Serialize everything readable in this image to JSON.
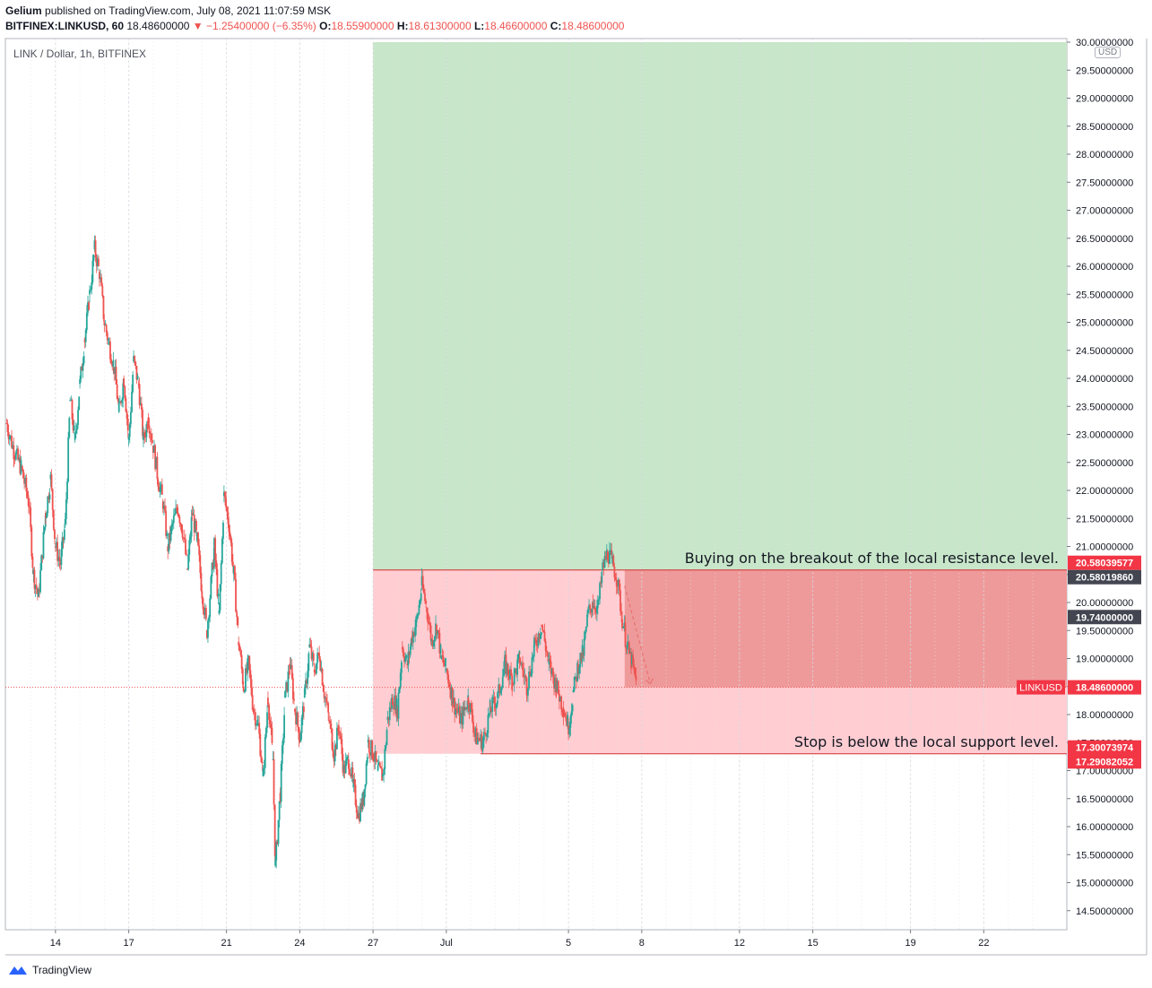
{
  "header": {
    "publisher": "Gelium",
    "published_text": "published on TradingView.com, July 08, 2021 11:07:59 MSK",
    "symbol_line": "BITFINEX:LINKUSD, 60",
    "last": "18.48600000",
    "change": "▼ −1.25400000 (−6.35%)",
    "o_label": "O:",
    "o": "18.55900000",
    "h_label": "H:",
    "h": "18.61300000",
    "l_label": "L:",
    "l": "18.46600000",
    "c_label": "C:",
    "c": "18.48600000"
  },
  "footer": {
    "brand": "TradingView"
  },
  "colors": {
    "up": "#26a69a",
    "down": "#ef5350",
    "profit_zone": "#c8e6c9",
    "loss_zone": "#ffcdd2",
    "loss_zone_dark": "#ef9a9a"
  },
  "chart_data": {
    "type": "candlestick",
    "title": "LINK / Dollar, 1h, BITFINEX",
    "currency": "USD",
    "ylim": [
      14.0,
      30.0
    ],
    "y_ticks": [
      "14.50000000",
      "15.00000000",
      "15.50000000",
      "16.00000000",
      "16.50000000",
      "17.00000000",
      "17.50000000",
      "18.00000000",
      "18.50000000",
      "19.00000000",
      "19.50000000",
      "20.00000000",
      "20.50000000",
      "21.00000000",
      "21.50000000",
      "22.00000000",
      "22.50000000",
      "23.00000000",
      "23.50000000",
      "24.00000000",
      "24.50000000",
      "25.00000000",
      "25.50000000",
      "26.00000000",
      "26.50000000",
      "27.00000000",
      "27.50000000",
      "28.00000000",
      "28.50000000",
      "29.00000000",
      "29.50000000",
      "30.00000000"
    ],
    "x_ticks": [
      {
        "label": "14",
        "day": 14
      },
      {
        "label": "17",
        "day": 17
      },
      {
        "label": "21",
        "day": 21
      },
      {
        "label": "24",
        "day": 24
      },
      {
        "label": "27",
        "day": 27
      },
      {
        "label": "Jul",
        "day": 30
      },
      {
        "label": "5",
        "day": 35
      },
      {
        "label": "8",
        "day": 38
      },
      {
        "label": "12",
        "day": 42
      },
      {
        "label": "15",
        "day": 45
      },
      {
        "label": "19",
        "day": 49
      },
      {
        "label": "22",
        "day": 52
      }
    ],
    "x_range_days": [
      11.95,
      55.4
    ],
    "price_path": [
      [
        12.0,
        23.2
      ],
      [
        12.3,
        22.7
      ],
      [
        12.6,
        22.4
      ],
      [
        12.9,
        21.8
      ],
      [
        13.1,
        20.5
      ],
      [
        13.3,
        20.1
      ],
      [
        13.6,
        21.6
      ],
      [
        13.8,
        22.2
      ],
      [
        14.0,
        21.0
      ],
      [
        14.2,
        20.7
      ],
      [
        14.4,
        21.4
      ],
      [
        14.6,
        23.6
      ],
      [
        14.8,
        22.9
      ],
      [
        15.0,
        23.9
      ],
      [
        15.2,
        24.7
      ],
      [
        15.4,
        25.5
      ],
      [
        15.6,
        26.3
      ],
      [
        15.8,
        25.9
      ],
      [
        16.0,
        25.0
      ],
      [
        16.2,
        24.6
      ],
      [
        16.4,
        24.2
      ],
      [
        16.6,
        23.4
      ],
      [
        16.8,
        24.0
      ],
      [
        17.0,
        22.9
      ],
      [
        17.2,
        24.3
      ],
      [
        17.4,
        23.9
      ],
      [
        17.6,
        22.9
      ],
      [
        17.8,
        23.3
      ],
      [
        18.0,
        22.8
      ],
      [
        18.2,
        22.2
      ],
      [
        18.4,
        21.8
      ],
      [
        18.6,
        21.0
      ],
      [
        18.8,
        21.4
      ],
      [
        19.0,
        21.7
      ],
      [
        19.2,
        21.3
      ],
      [
        19.4,
        20.6
      ],
      [
        19.6,
        21.6
      ],
      [
        19.8,
        21.1
      ],
      [
        20.0,
        20.2
      ],
      [
        20.2,
        19.5
      ],
      [
        20.5,
        21.0
      ],
      [
        20.7,
        19.8
      ],
      [
        20.9,
        21.9
      ],
      [
        21.1,
        21.4
      ],
      [
        21.3,
        20.5
      ],
      [
        21.5,
        19.3
      ],
      [
        21.7,
        18.5
      ],
      [
        21.9,
        18.9
      ],
      [
        22.1,
        18.1
      ],
      [
        22.3,
        17.8
      ],
      [
        22.5,
        16.9
      ],
      [
        22.7,
        18.3
      ],
      [
        22.9,
        17.2
      ],
      [
        23.0,
        15.3
      ],
      [
        23.2,
        16.6
      ],
      [
        23.4,
        18.3
      ],
      [
        23.6,
        18.9
      ],
      [
        23.8,
        18.1
      ],
      [
        24.0,
        17.6
      ],
      [
        24.2,
        18.3
      ],
      [
        24.4,
        19.2
      ],
      [
        24.6,
        18.8
      ],
      [
        24.8,
        19.1
      ],
      [
        25.0,
        18.4
      ],
      [
        25.2,
        17.9
      ],
      [
        25.4,
        17.3
      ],
      [
        25.6,
        17.8
      ],
      [
        25.8,
        17.0
      ],
      [
        26.0,
        17.2
      ],
      [
        26.2,
        16.7
      ],
      [
        26.4,
        16.2
      ],
      [
        26.6,
        16.5
      ],
      [
        26.8,
        17.5
      ],
      [
        27.0,
        17.3
      ],
      [
        27.2,
        17.0
      ],
      [
        27.4,
        16.9
      ],
      [
        27.6,
        17.9
      ],
      [
        27.8,
        18.3
      ],
      [
        28.0,
        18.1
      ],
      [
        28.2,
        19.2
      ],
      [
        28.4,
        18.9
      ],
      [
        28.6,
        19.4
      ],
      [
        28.8,
        19.7
      ],
      [
        29.0,
        20.3
      ],
      [
        29.2,
        19.9
      ],
      [
        29.4,
        19.3
      ],
      [
        29.6,
        19.6
      ],
      [
        29.8,
        19.0
      ],
      [
        30.0,
        18.8
      ],
      [
        30.3,
        18.2
      ],
      [
        30.6,
        17.9
      ],
      [
        30.9,
        18.3
      ],
      [
        31.2,
        17.6
      ],
      [
        31.5,
        17.5
      ],
      [
        31.8,
        18.1
      ],
      [
        32.1,
        18.3
      ],
      [
        32.4,
        18.9
      ],
      [
        32.7,
        18.6
      ],
      [
        33.0,
        19.0
      ],
      [
        33.3,
        18.5
      ],
      [
        33.6,
        19.2
      ],
      [
        33.9,
        19.6
      ],
      [
        34.2,
        18.9
      ],
      [
        34.5,
        18.5
      ],
      [
        34.8,
        18.1
      ],
      [
        35.0,
        17.8
      ],
      [
        35.2,
        18.4
      ],
      [
        35.4,
        18.9
      ],
      [
        35.6,
        19.1
      ],
      [
        35.8,
        19.8
      ],
      [
        36.0,
        20.0
      ],
      [
        36.2,
        19.9
      ],
      [
        36.4,
        20.6
      ],
      [
        36.6,
        20.9
      ],
      [
        36.8,
        20.7
      ],
      [
        37.0,
        20.4
      ],
      [
        37.2,
        19.7
      ],
      [
        37.4,
        19.2
      ],
      [
        37.6,
        18.9
      ],
      [
        37.8,
        18.5
      ]
    ],
    "annotations": [
      {
        "text": "Buying on the breakout of the local resistance level.",
        "price": 20.58
      },
      {
        "text": "Stop is below the local support level.",
        "price": 17.3
      }
    ],
    "price_labels": [
      {
        "text": "20.58039577",
        "price": 20.58039577,
        "style": "red"
      },
      {
        "text": "20.58019860",
        "price": 20.5801986,
        "style": "dark"
      },
      {
        "text": "19.74000000",
        "price": 19.74,
        "style": "dark"
      },
      {
        "text": "18.48600000",
        "price": 18.486,
        "style": "red",
        "tag": "LINKUSD"
      },
      {
        "text": "17.30073974",
        "price": 17.30073974,
        "style": "red"
      },
      {
        "text": "17.29082052",
        "price": 17.29082052,
        "style": "red"
      }
    ],
    "position": {
      "entry_price": 20.58,
      "stop_price": 17.3,
      "target_price": 30.0,
      "start_day": 27.0,
      "current_price": 18.486
    }
  }
}
